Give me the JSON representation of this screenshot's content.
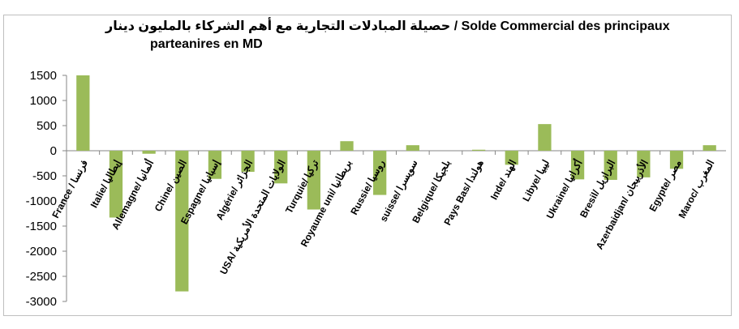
{
  "chart_data": {
    "type": "bar",
    "title_line1": "حصيلة المبادلات التجارية مع أهم الشركاء بالمليون دينار / Solde Commercial des principaux",
    "title_line2": "parteanires en MD",
    "xlabel": "",
    "ylabel": "",
    "ylim": [
      -3000,
      1500
    ],
    "yticks": [
      1500,
      1000,
      500,
      0,
      -500,
      -1000,
      -1500,
      -2000,
      -2500,
      -3000
    ],
    "grid": false,
    "legend": "none",
    "bar_color": "#9bbb59",
    "categories": [
      "France / فرنسا",
      "Italie/ إيطاليا",
      "Allemagne/ ألمانيا",
      "Chine/ الصين",
      "Espagne/ إسبانيا",
      "Algérie/ الجزائر",
      "USA/ الولايات المتحدة الأمريكية",
      "Turquie/ تركيا",
      "Royaume uni/ بريطانيا",
      "Russie/ روسيا",
      "suisse/ سويسرا",
      "Belgique/ بلجيكا",
      "Pays Bas/ هولندا",
      "Inde/ الهند",
      "Libye/ ليبيا",
      "Ukraine/ أكرانيا",
      "Bresil/ البرازيل",
      "Azerbaidjan/ الأذربيجان",
      "Egypte/ مصر",
      "Maroc/ المغرب"
    ],
    "values": [
      1500,
      -1330,
      -60,
      -2800,
      -560,
      -420,
      -650,
      -1170,
      190,
      -880,
      110,
      0,
      20,
      -280,
      530,
      -570,
      -580,
      -530,
      -360,
      110
    ]
  }
}
